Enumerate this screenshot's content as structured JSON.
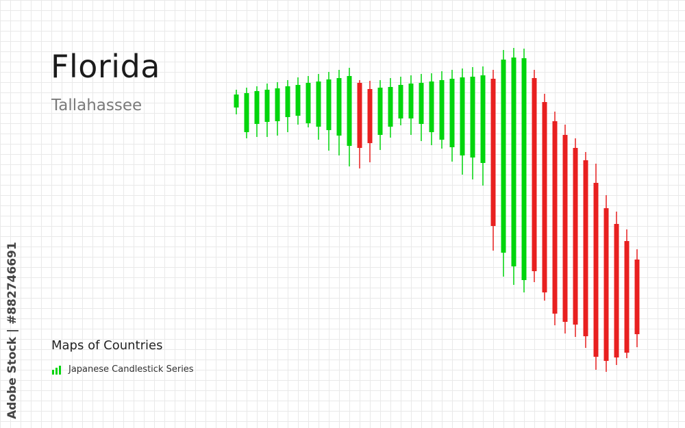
{
  "header": {
    "title": "Florida",
    "subtitle": "Tallahassee"
  },
  "footer": {
    "series_title": "Maps of Countries",
    "legend_label": "Japanese Candlestick Series"
  },
  "credit": "Adobe Stock | #882746691",
  "colors": {
    "bullish": "#00d50c",
    "bearish": "#e82020",
    "grid": "#e9e9e9",
    "text": "#1b1b1b",
    "subtitle": "#7a7a7a"
  },
  "icons": {
    "legend": "candlestick-bars-icon"
  }
}
